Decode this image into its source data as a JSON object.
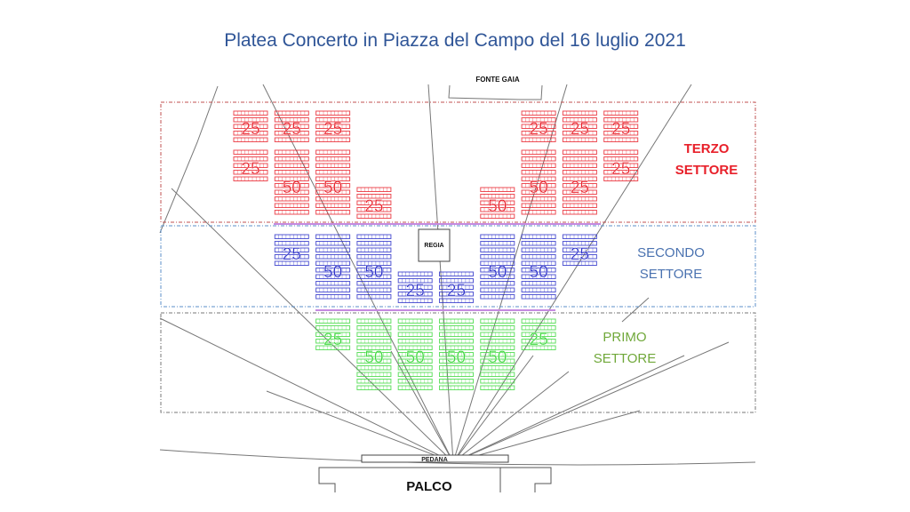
{
  "title": "Platea Concerto in Piazza del Campo del 16 luglio 2021",
  "landmarks": {
    "fountain": "FONTE GAIA",
    "control_booth": "REGIA",
    "platform": "PEDANA",
    "stage": "PALCO"
  },
  "colors": {
    "terzo": "#e8202a",
    "secondo": "#2a2fc8",
    "primo": "#3fd83f",
    "title": "#2f5597",
    "secondo_label": "#4a72b0",
    "primo_label": "#70a83a"
  },
  "sectors": [
    {
      "id": "terzo",
      "label_line1": "TERZO",
      "label_line2": "SETTORE",
      "blocks": [
        {
          "seats": "25"
        },
        {
          "seats": "25"
        },
        {
          "seats": "25"
        },
        {
          "seats": "25"
        },
        {
          "seats": "25"
        },
        {
          "seats": "25"
        },
        {
          "seats": "25"
        },
        {
          "seats": "50"
        },
        {
          "seats": "50"
        },
        {
          "seats": "25"
        },
        {
          "seats": "25"
        },
        {
          "seats": "50"
        },
        {
          "seats": "50"
        },
        {
          "seats": "25"
        }
      ]
    },
    {
      "id": "secondo",
      "label_line1": "SECONDO",
      "label_line2": "SETTORE",
      "blocks": [
        {
          "seats": "25"
        },
        {
          "seats": "50"
        },
        {
          "seats": "50"
        },
        {
          "seats": "25"
        },
        {
          "seats": "25"
        },
        {
          "seats": "50"
        },
        {
          "seats": "50"
        },
        {
          "seats": "25"
        }
      ]
    },
    {
      "id": "primo",
      "label_line1": "PRIMO",
      "label_line2": "SETTORE",
      "blocks": [
        {
          "seats": "25"
        },
        {
          "seats": "50"
        },
        {
          "seats": "50"
        },
        {
          "seats": "50"
        },
        {
          "seats": "50"
        },
        {
          "seats": "25"
        }
      ]
    }
  ]
}
